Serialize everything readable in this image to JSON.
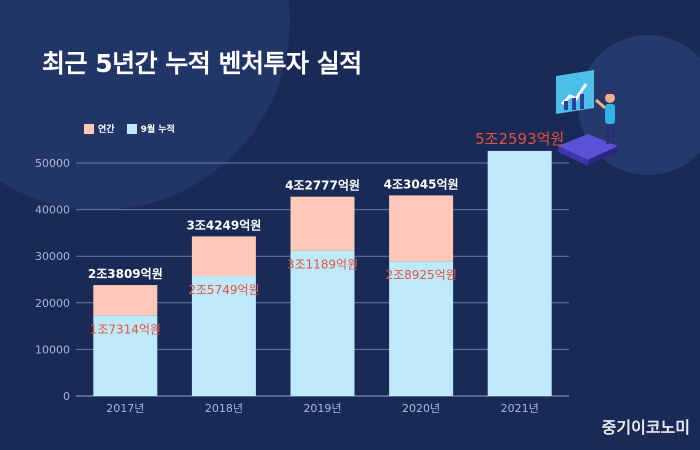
{
  "title": "최근 5년간 누적 벤처투자 실적",
  "watermark": "중기이코노미",
  "colors": {
    "background": "#182a55",
    "annual": "#ffc8b8",
    "cumulative9m": "#bde9fb",
    "label_light": "#ffffff",
    "label_red": "#e8533d",
    "axis_text": "#a9b6d6",
    "grid": "#6b7aa3"
  },
  "chart_data": {
    "type": "bar",
    "stacked": true,
    "title": "최근 5년간 누적 벤처투자 실적",
    "xlabel": "",
    "ylabel": "",
    "ylim": [
      0,
      50000
    ],
    "yticks": [
      0,
      10000,
      20000,
      30000,
      40000,
      50000
    ],
    "grid": true,
    "legend_position": "top-left",
    "categories": [
      "2017년",
      "2018년",
      "2019년",
      "2020년",
      "2021년"
    ],
    "series": [
      {
        "name": "9월 누적",
        "values": [
          17314,
          25749,
          31189,
          28925,
          52593
        ],
        "color": "#bde9fb"
      },
      {
        "name": "연간",
        "values": [
          6495,
          8500,
          11588,
          14120,
          0
        ],
        "color": "#ffc8b8"
      }
    ],
    "totals": [
      23809,
      34249,
      42777,
      43045,
      52593
    ],
    "total_labels": [
      "2조3809억원",
      "3조4249억원",
      "4조2777억원",
      "4조3045억원",
      "5조2593억원"
    ],
    "cumulative_labels": [
      "1조7314억원",
      "2조5749억원",
      "3조1189억원",
      "2조8925억원",
      ""
    ]
  }
}
